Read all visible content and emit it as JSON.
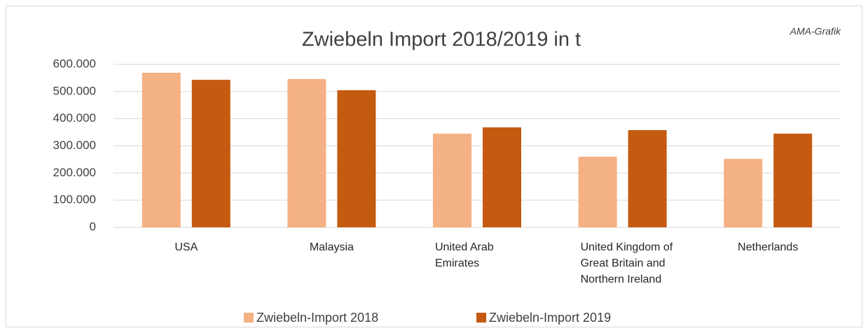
{
  "chart_data": {
    "type": "bar",
    "title": "Zwiebeln Import 2018/2019 in t",
    "annotation": "AMA-Grafik",
    "categories": [
      "USA",
      "Malaysia",
      "United Arab Emirates",
      "United Kingdom of Great Britain and Northern Ireland",
      "Netherlands"
    ],
    "series": [
      {
        "name": "Zwiebeln-Import 2018",
        "color": "#f4b183",
        "values": [
          569000,
          546000,
          345000,
          260000,
          252000
        ]
      },
      {
        "name": "Zwiebeln-Import 2019",
        "color": "#c55a11",
        "values": [
          543000,
          505000,
          368000,
          358000,
          345000
        ]
      }
    ],
    "ylim": [
      0,
      600000
    ],
    "yticks": [
      0,
      {
        "value": 100000,
        "label": "100.000"
      },
      {
        "value": 200000,
        "label": "200.000"
      },
      {
        "value": 300000,
        "label": "300.000"
      },
      {
        "value": 400000,
        "label": "400.000"
      },
      {
        "value": 500000,
        "label": "500.000"
      },
      {
        "value": 600000,
        "label": "600.000"
      }
    ],
    "grid": true,
    "legend": "bottom"
  }
}
